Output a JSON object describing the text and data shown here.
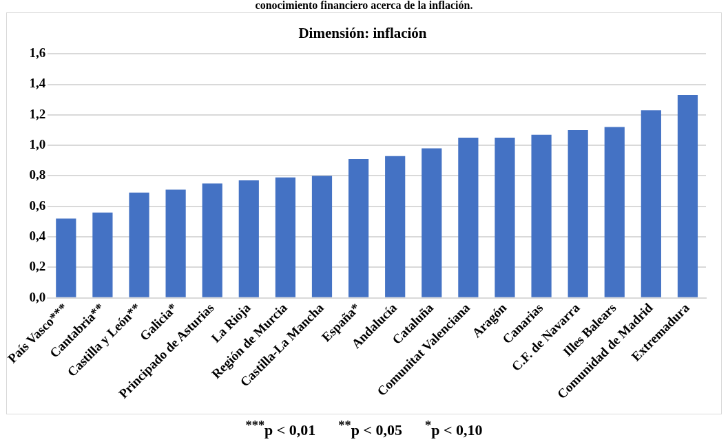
{
  "chart_data": {
    "type": "bar",
    "title": "Dimensión: inflación",
    "categories": [
      "País Vasco***",
      "Cantabria**",
      "Castilla y León**",
      "Galicia*",
      "Principado de Asturias",
      "La Rioja",
      "Región de Murcia",
      "Castilla-La Mancha",
      "España*",
      "Andalucía",
      "Cataluña",
      "Comunitat Valenciana",
      "Aragón",
      "Canarias",
      "C.F. de Navarra",
      "Illes Balears",
      "Comunidad de Madrid",
      "Extremadura"
    ],
    "values": [
      0.52,
      0.56,
      0.69,
      0.71,
      0.75,
      0.77,
      0.79,
      0.8,
      0.91,
      0.93,
      0.98,
      1.05,
      1.05,
      1.07,
      1.1,
      1.12,
      1.23,
      1.33
    ],
    "color": "#4472c4",
    "ylim": [
      0,
      1.6
    ],
    "yticks": [
      {
        "value": 0,
        "label": "0,0"
      },
      {
        "value": 0.2,
        "label": "0,2"
      },
      {
        "value": 0.4,
        "label": "0,4"
      },
      {
        "value": 0.6,
        "label": "0,6"
      },
      {
        "value": 0.8,
        "label": "0,8"
      },
      {
        "value": 1.0,
        "label": "1,0"
      },
      {
        "value": 1.2,
        "label": "1,2"
      },
      {
        "value": 1.4,
        "label": "1,4"
      },
      {
        "value": 1.6,
        "label": "1,6"
      }
    ],
    "grid": "y",
    "legend": false,
    "annotations": [
      "conocimiento financiero acerca de la inflación.",
      "$^{***}$p < 0,01      $^{**}$p < 0,05      $^{*}$p < 0,10"
    ]
  }
}
